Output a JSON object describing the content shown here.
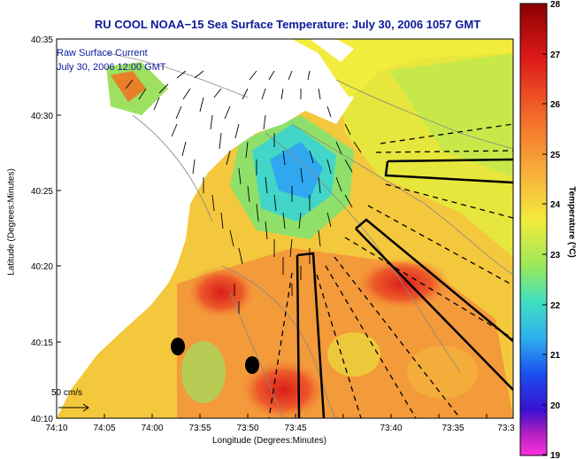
{
  "title": "RU COOL   NOAA−15   Sea Surface Temperature:  July 30, 2006 1057 GMT",
  "legend": {
    "line1": "Raw Surface Current",
    "line2": "July 30, 2006 12:00 GMT"
  },
  "axes": {
    "xlabel": "Longitude (Degrees:Minutes)",
    "ylabel": "Latitude (Degrees:Minutes)",
    "x_ticks": [
      "74:10",
      "74:05",
      "74:00",
      "73:55",
      "73:50",
      "73:45",
      "73:40",
      "73:35",
      "73:3"
    ],
    "y_ticks": [
      "40:35",
      "40:30",
      "40:25",
      "40:20",
      "40:15",
      "40:10"
    ]
  },
  "colorbar": {
    "label": "Temperature (°C)",
    "ticks": [
      "28",
      "27",
      "26",
      "25",
      "24",
      "23",
      "22",
      "21",
      "20",
      "19"
    ]
  },
  "scale_label": "50 cm/s",
  "colors": {
    "title": "#0b1a9a",
    "land": "#ffffff",
    "sst_warm": "#e8482a",
    "sst_mid": "#f3d63a",
    "sst_cool": "#5dd8d0"
  }
}
